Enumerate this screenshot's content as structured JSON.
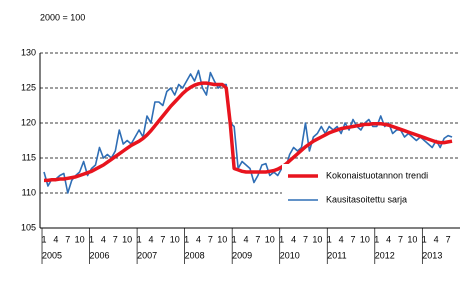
{
  "chart_data": {
    "type": "line",
    "subtitle": "2000 = 100",
    "categories": [
      "1",
      null,
      null,
      "4",
      null,
      null,
      "7",
      null,
      null,
      "10",
      null,
      null,
      "1",
      null,
      null,
      "4",
      null,
      null,
      "7",
      null,
      null,
      "10",
      null,
      null,
      "1",
      null,
      null,
      "4",
      null,
      null,
      "7",
      null,
      null,
      "10",
      null,
      null,
      "1",
      null,
      null,
      "4",
      null,
      null,
      "7",
      null,
      null,
      "10",
      null,
      null,
      "1",
      null,
      null,
      "4",
      null,
      null,
      "7",
      null,
      null,
      "10",
      null,
      null,
      "1",
      null,
      null,
      "4",
      null,
      null,
      "7",
      null,
      null,
      "10",
      null,
      null,
      "1",
      null,
      null,
      "4",
      null,
      null,
      "7",
      null,
      null,
      "10",
      null,
      null,
      "1",
      null,
      null,
      "4",
      null,
      null,
      "7",
      null,
      null,
      "10",
      null,
      null,
      "1",
      null,
      null,
      "4",
      null,
      null,
      "7",
      null
    ],
    "year_labels": [
      "2005",
      "2006",
      "2007",
      "2008",
      "2009",
      "2010",
      "2011",
      "2012",
      "2013"
    ],
    "ylim": [
      105,
      130
    ],
    "yticks": [
      105,
      110,
      115,
      120,
      125,
      130
    ],
    "grid": true,
    "legend": "lower right",
    "series": [
      {
        "name": "Kokonaistuotannon trendi",
        "color": "#e8141e",
        "values": [
          111.8,
          111.8,
          111.9,
          111.9,
          112.0,
          112.0,
          112.1,
          112.2,
          112.3,
          112.5,
          112.7,
          112.9,
          113.1,
          113.4,
          113.7,
          114.0,
          114.4,
          114.8,
          115.2,
          115.6,
          116.0,
          116.4,
          116.8,
          117.1,
          117.4,
          117.8,
          118.3,
          118.9,
          119.6,
          120.3,
          121.0,
          121.7,
          122.4,
          123.0,
          123.6,
          124.2,
          124.7,
          125.1,
          125.4,
          125.6,
          125.7,
          125.7,
          125.6,
          125.5,
          125.5,
          125.5,
          125.0,
          120.0,
          113.5,
          113.3,
          113.1,
          113.0,
          113.0,
          113.0,
          113.0,
          113.0,
          113.0,
          113.1,
          113.2,
          113.4,
          113.7,
          114.1,
          114.6,
          115.1,
          115.6,
          116.1,
          116.6,
          117.0,
          117.4,
          117.7,
          118.0,
          118.3,
          118.6,
          118.8,
          119.0,
          119.2,
          119.3,
          119.4,
          119.5,
          119.6,
          119.7,
          119.8,
          119.8,
          119.9,
          119.9,
          119.9,
          119.8,
          119.7,
          119.5,
          119.3,
          119.1,
          118.9,
          118.7,
          118.5,
          118.3,
          118.1,
          117.9,
          117.7,
          117.5,
          117.3,
          117.2,
          117.2,
          117.3,
          117.4
        ]
      },
      {
        "name": "Kausitasoitettu sarja",
        "color": "#2f6eb5",
        "values": [
          113.0,
          111.0,
          112.0,
          112.0,
          112.5,
          112.8,
          110.0,
          111.8,
          112.5,
          113.0,
          114.5,
          112.5,
          113.5,
          114.0,
          116.5,
          115.0,
          115.5,
          115.0,
          116.0,
          119.0,
          117.0,
          117.5,
          117.0,
          118.0,
          119.0,
          118.0,
          121.0,
          120.0,
          123.0,
          123.0,
          122.5,
          124.5,
          125.0,
          124.0,
          125.5,
          125.0,
          126.0,
          127.0,
          126.0,
          127.5,
          125.0,
          124.0,
          127.2,
          126.0,
          125.0,
          125.5,
          125.5,
          120.0,
          119.5,
          113.5,
          114.5,
          114.0,
          113.5,
          111.5,
          112.5,
          114.0,
          114.2,
          112.5,
          113.0,
          112.5,
          113.5,
          113.5,
          115.5,
          116.5,
          116.0,
          116.5,
          120.0,
          116.0,
          118.0,
          118.5,
          119.5,
          118.5,
          119.5,
          119.0,
          119.5,
          118.5,
          120.0,
          119.0,
          120.5,
          119.5,
          119.0,
          120.0,
          120.5,
          119.5,
          119.5,
          121.0,
          119.5,
          120.0,
          118.5,
          119.0,
          119.0,
          118.0,
          118.5,
          118.0,
          117.5,
          118.0,
          117.5,
          117.0,
          116.5,
          117.5,
          116.5,
          117.8,
          118.2,
          118.0
        ]
      }
    ]
  }
}
